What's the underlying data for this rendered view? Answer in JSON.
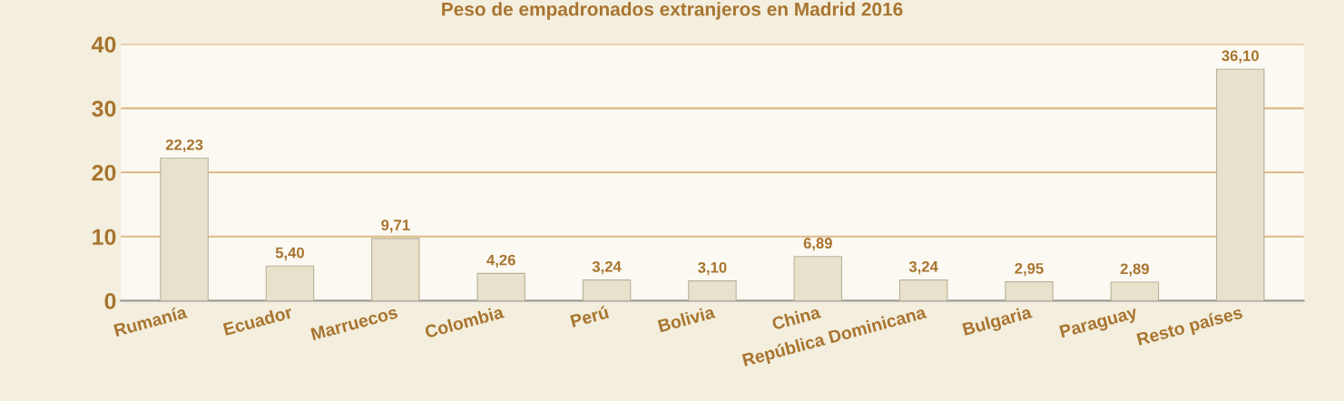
{
  "chart_data": {
    "type": "bar",
    "title": "Peso de empadronados extranjeros en Madrid 2016",
    "categories": [
      "Rumanía",
      "Ecuador",
      "Marruecos",
      "Colombia",
      "Perú",
      "Bolivia",
      "China",
      "República Dominicana",
      "Bulgaria",
      "Paraguay",
      "Resto países"
    ],
    "values": [
      22.23,
      5.4,
      9.71,
      4.26,
      3.24,
      3.1,
      6.89,
      3.24,
      2.95,
      2.89,
      36.1
    ],
    "value_labels": [
      "22,23",
      "5,40",
      "9,71",
      "4,26",
      "3,24",
      "3,10",
      "6,89",
      "3,24",
      "2,95",
      "2,89",
      "36,10"
    ],
    "color": "#e8e2cc",
    "ylim": [
      0,
      40
    ],
    "yticks": [
      0,
      10,
      20,
      30,
      40
    ],
    "grid": "y"
  }
}
